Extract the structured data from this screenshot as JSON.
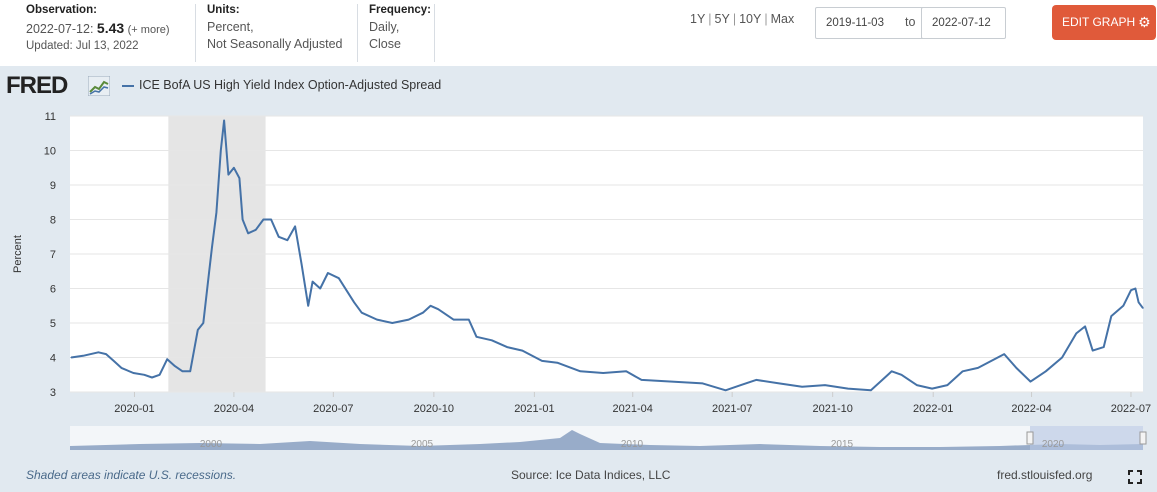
{
  "observation": {
    "title": "Observation:",
    "date": "2022-07-12:",
    "value": "5.43",
    "more": "(+ more)",
    "updated": "Updated: Jul 13, 2022"
  },
  "units": {
    "title": "Units:",
    "line1": "Percent,",
    "line2": "Not Seasonally Adjusted"
  },
  "frequency": {
    "title": "Frequency:",
    "line1": "Daily,",
    "line2": "Close"
  },
  "range_options": [
    "1Y",
    "5Y",
    "10Y",
    "Max"
  ],
  "date_range": {
    "start": "2019-11-03",
    "to_label": "to",
    "end": "2022-07-12"
  },
  "edit_button": {
    "label": "EDIT GRAPH",
    "icon": "gear-icon"
  },
  "logo": {
    "text": "FRED",
    "icon": "chart-line-icon"
  },
  "footer": {
    "note": "Shaded areas indicate U.S. recessions.",
    "source": "Source: Ice Data Indices, LLC",
    "site": "fred.stlouisfed.org",
    "fullscreen_icon": "fullscreen-icon"
  },
  "colors": {
    "series": "#4572a7",
    "accent": "#e05a3a",
    "panel": "#e1e9f0",
    "recession": "#e5e5e5"
  },
  "chart_data": {
    "type": "line",
    "title": "",
    "xlabel": "",
    "ylabel": "Percent",
    "ylim": [
      3,
      11
    ],
    "yticks": [
      3,
      4,
      5,
      6,
      7,
      8,
      9,
      10,
      11
    ],
    "xlim": [
      "2019-11-03",
      "2022-07-12"
    ],
    "xticks": [
      "2020-01",
      "2020-04",
      "2020-07",
      "2020-10",
      "2021-01",
      "2021-04",
      "2021-07",
      "2021-10",
      "2022-01",
      "2022-04",
      "2022-07"
    ],
    "grid": "horizontal",
    "legend_position": "top-left",
    "recessions": [
      [
        "2020-02-01",
        "2020-04-30"
      ]
    ],
    "series": [
      {
        "name": "ICE BofA US High Yield Index Option-Adjusted Spread",
        "points": [
          [
            "2019-11-04",
            4.0
          ],
          [
            "2019-11-15",
            4.05
          ],
          [
            "2019-11-29",
            4.15
          ],
          [
            "2019-12-06",
            4.1
          ],
          [
            "2019-12-13",
            3.9
          ],
          [
            "2019-12-20",
            3.7
          ],
          [
            "2019-12-31",
            3.55
          ],
          [
            "2020-01-10",
            3.5
          ],
          [
            "2020-01-17",
            3.42
          ],
          [
            "2020-01-24",
            3.5
          ],
          [
            "2020-01-31",
            3.95
          ],
          [
            "2020-02-07",
            3.75
          ],
          [
            "2020-02-14",
            3.6
          ],
          [
            "2020-02-21",
            3.6
          ],
          [
            "2020-02-28",
            4.8
          ],
          [
            "2020-03-04",
            5.0
          ],
          [
            "2020-03-09",
            6.4
          ],
          [
            "2020-03-12",
            7.2
          ],
          [
            "2020-03-16",
            8.2
          ],
          [
            "2020-03-20",
            10.0
          ],
          [
            "2020-03-23",
            10.87
          ],
          [
            "2020-03-27",
            9.3
          ],
          [
            "2020-04-01",
            9.5
          ],
          [
            "2020-04-06",
            9.2
          ],
          [
            "2020-04-09",
            8.0
          ],
          [
            "2020-04-14",
            7.6
          ],
          [
            "2020-04-21",
            7.7
          ],
          [
            "2020-04-28",
            8.0
          ],
          [
            "2020-05-05",
            8.0
          ],
          [
            "2020-05-12",
            7.5
          ],
          [
            "2020-05-20",
            7.4
          ],
          [
            "2020-05-27",
            7.8
          ],
          [
            "2020-06-02",
            6.7
          ],
          [
            "2020-06-08",
            5.5
          ],
          [
            "2020-06-12",
            6.2
          ],
          [
            "2020-06-19",
            6.0
          ],
          [
            "2020-06-26",
            6.45
          ],
          [
            "2020-07-06",
            6.3
          ],
          [
            "2020-07-13",
            5.95
          ],
          [
            "2020-07-20",
            5.6
          ],
          [
            "2020-07-27",
            5.3
          ],
          [
            "2020-08-10",
            5.1
          ],
          [
            "2020-08-24",
            5.0
          ],
          [
            "2020-09-08",
            5.1
          ],
          [
            "2020-09-21",
            5.3
          ],
          [
            "2020-09-28",
            5.5
          ],
          [
            "2020-10-05",
            5.4
          ],
          [
            "2020-10-19",
            5.1
          ],
          [
            "2020-11-02",
            5.1
          ],
          [
            "2020-11-09",
            4.6
          ],
          [
            "2020-11-23",
            4.5
          ],
          [
            "2020-12-07",
            4.3
          ],
          [
            "2020-12-21",
            4.2
          ],
          [
            "2021-01-08",
            3.9
          ],
          [
            "2021-01-22",
            3.85
          ],
          [
            "2021-02-12",
            3.6
          ],
          [
            "2021-03-05",
            3.55
          ],
          [
            "2021-03-26",
            3.6
          ],
          [
            "2021-04-09",
            3.35
          ],
          [
            "2021-05-07",
            3.3
          ],
          [
            "2021-06-04",
            3.25
          ],
          [
            "2021-06-25",
            3.05
          ],
          [
            "2021-07-09",
            3.2
          ],
          [
            "2021-07-23",
            3.35
          ],
          [
            "2021-08-13",
            3.25
          ],
          [
            "2021-09-03",
            3.15
          ],
          [
            "2021-09-24",
            3.2
          ],
          [
            "2021-10-15",
            3.1
          ],
          [
            "2021-11-05",
            3.05
          ],
          [
            "2021-11-24",
            3.6
          ],
          [
            "2021-12-03",
            3.5
          ],
          [
            "2021-12-17",
            3.2
          ],
          [
            "2021-12-31",
            3.1
          ],
          [
            "2022-01-14",
            3.2
          ],
          [
            "2022-01-28",
            3.6
          ],
          [
            "2022-02-11",
            3.7
          ],
          [
            "2022-03-07",
            4.1
          ],
          [
            "2022-03-18",
            3.7
          ],
          [
            "2022-03-31",
            3.3
          ],
          [
            "2022-04-14",
            3.6
          ],
          [
            "2022-04-29",
            4.0
          ],
          [
            "2022-05-12",
            4.7
          ],
          [
            "2022-05-20",
            4.9
          ],
          [
            "2022-05-27",
            4.2
          ],
          [
            "2022-06-06",
            4.3
          ],
          [
            "2022-06-13",
            5.2
          ],
          [
            "2022-06-24",
            5.5
          ],
          [
            "2022-07-01",
            5.95
          ],
          [
            "2022-07-05",
            6.0
          ],
          [
            "2022-07-08",
            5.6
          ],
          [
            "2022-07-12",
            5.43
          ]
        ]
      }
    ]
  },
  "navigator": {
    "labels": [
      "2000",
      "2005",
      "2010",
      "2015",
      "2020"
    ]
  }
}
